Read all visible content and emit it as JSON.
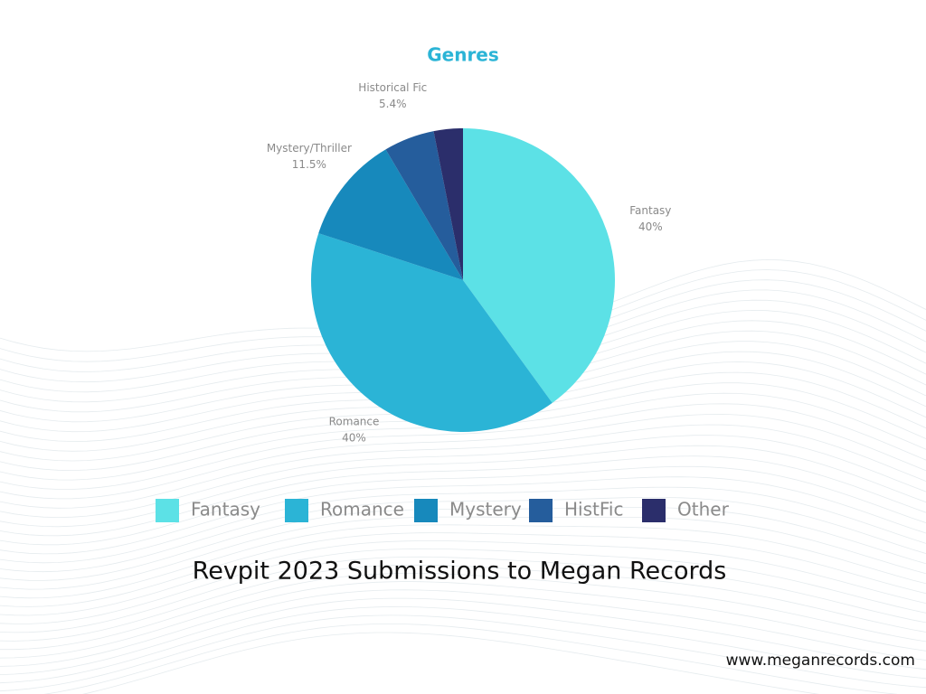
{
  "chart_data": {
    "type": "pie",
    "title": "Genres",
    "categories": [
      "Fantasy",
      "Romance",
      "Mystery/Thriller",
      "Historical Fic",
      null
    ],
    "legend_labels": [
      "Fantasy",
      "Romance",
      "Mystery",
      "HistFic",
      "Other"
    ],
    "values": [
      40,
      40,
      11.5,
      5.4,
      3.1
    ],
    "value_labels": [
      "40%",
      "40%",
      "11.5%",
      "5.4%",
      null
    ],
    "colors": [
      "#5ce1e6",
      "#2bb4d6",
      "#1789bc",
      "#255d9c",
      "#2b2e6b"
    ]
  },
  "caption": "Revpit 2023 Submissions to Megan Records",
  "website": "www.meganrecords.com"
}
